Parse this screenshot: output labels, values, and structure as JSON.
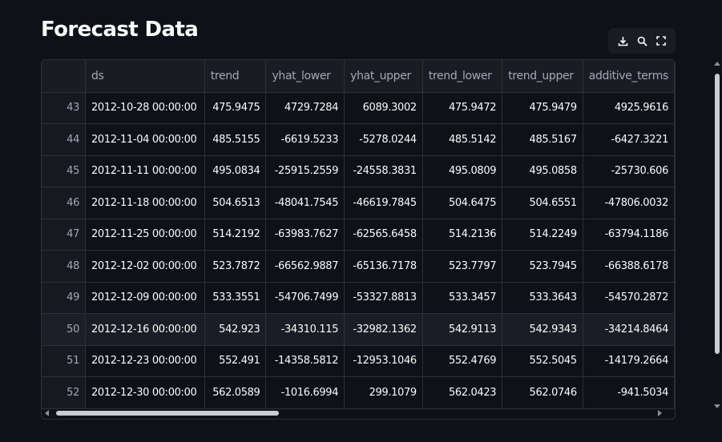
{
  "page": {
    "title": "Forecast Data"
  },
  "toolbar": {
    "download_icon": "download-icon",
    "search_icon": "search-icon",
    "fullscreen_icon": "fullscreen-icon"
  },
  "colors": {
    "background": "#0e1117",
    "header_bg": "#1a1c24",
    "border": "#2d3039",
    "text": "#fafafa",
    "muted_text": "#a3a8b8"
  },
  "table": {
    "columns": [
      "",
      "ds",
      "trend",
      "yhat_lower",
      "yhat_upper",
      "trend_lower",
      "trend_upper",
      "additive_terms"
    ],
    "rows": [
      [
        "43",
        "2012-10-28 00:00:00",
        "475.9475",
        "4729.7284",
        "6089.3002",
        "475.9472",
        "475.9479",
        "4925.9616"
      ],
      [
        "44",
        "2012-11-04 00:00:00",
        "485.5155",
        "-6619.5233",
        "-5278.0244",
        "485.5142",
        "485.5167",
        "-6427.3221"
      ],
      [
        "45",
        "2012-11-11 00:00:00",
        "495.0834",
        "-25915.2559",
        "-24558.3831",
        "495.0809",
        "495.0858",
        "-25730.606"
      ],
      [
        "46",
        "2012-11-18 00:00:00",
        "504.6513",
        "-48041.7545",
        "-46619.7845",
        "504.6475",
        "504.6551",
        "-47806.0032"
      ],
      [
        "47",
        "2012-11-25 00:00:00",
        "514.2192",
        "-63983.7627",
        "-62565.6458",
        "514.2136",
        "514.2249",
        "-63794.1186"
      ],
      [
        "48",
        "2012-12-02 00:00:00",
        "523.7872",
        "-66562.9887",
        "-65136.7178",
        "523.7797",
        "523.7945",
        "-66388.6178"
      ],
      [
        "49",
        "2012-12-09 00:00:00",
        "533.3551",
        "-54706.7499",
        "-53327.8813",
        "533.3457",
        "533.3643",
        "-54570.2872"
      ],
      [
        "50",
        "2012-12-16 00:00:00",
        "542.923",
        "-34310.115",
        "-32982.1362",
        "542.9113",
        "542.9343",
        "-34214.8464"
      ],
      [
        "51",
        "2012-12-23 00:00:00",
        "552.491",
        "-14358.5812",
        "-12953.1046",
        "552.4769",
        "552.5045",
        "-14179.2664"
      ],
      [
        "52",
        "2012-12-30 00:00:00",
        "562.0589",
        "-1016.6994",
        "299.1079",
        "562.0423",
        "562.0746",
        "-941.5034"
      ]
    ],
    "hovered_row": 7
  }
}
